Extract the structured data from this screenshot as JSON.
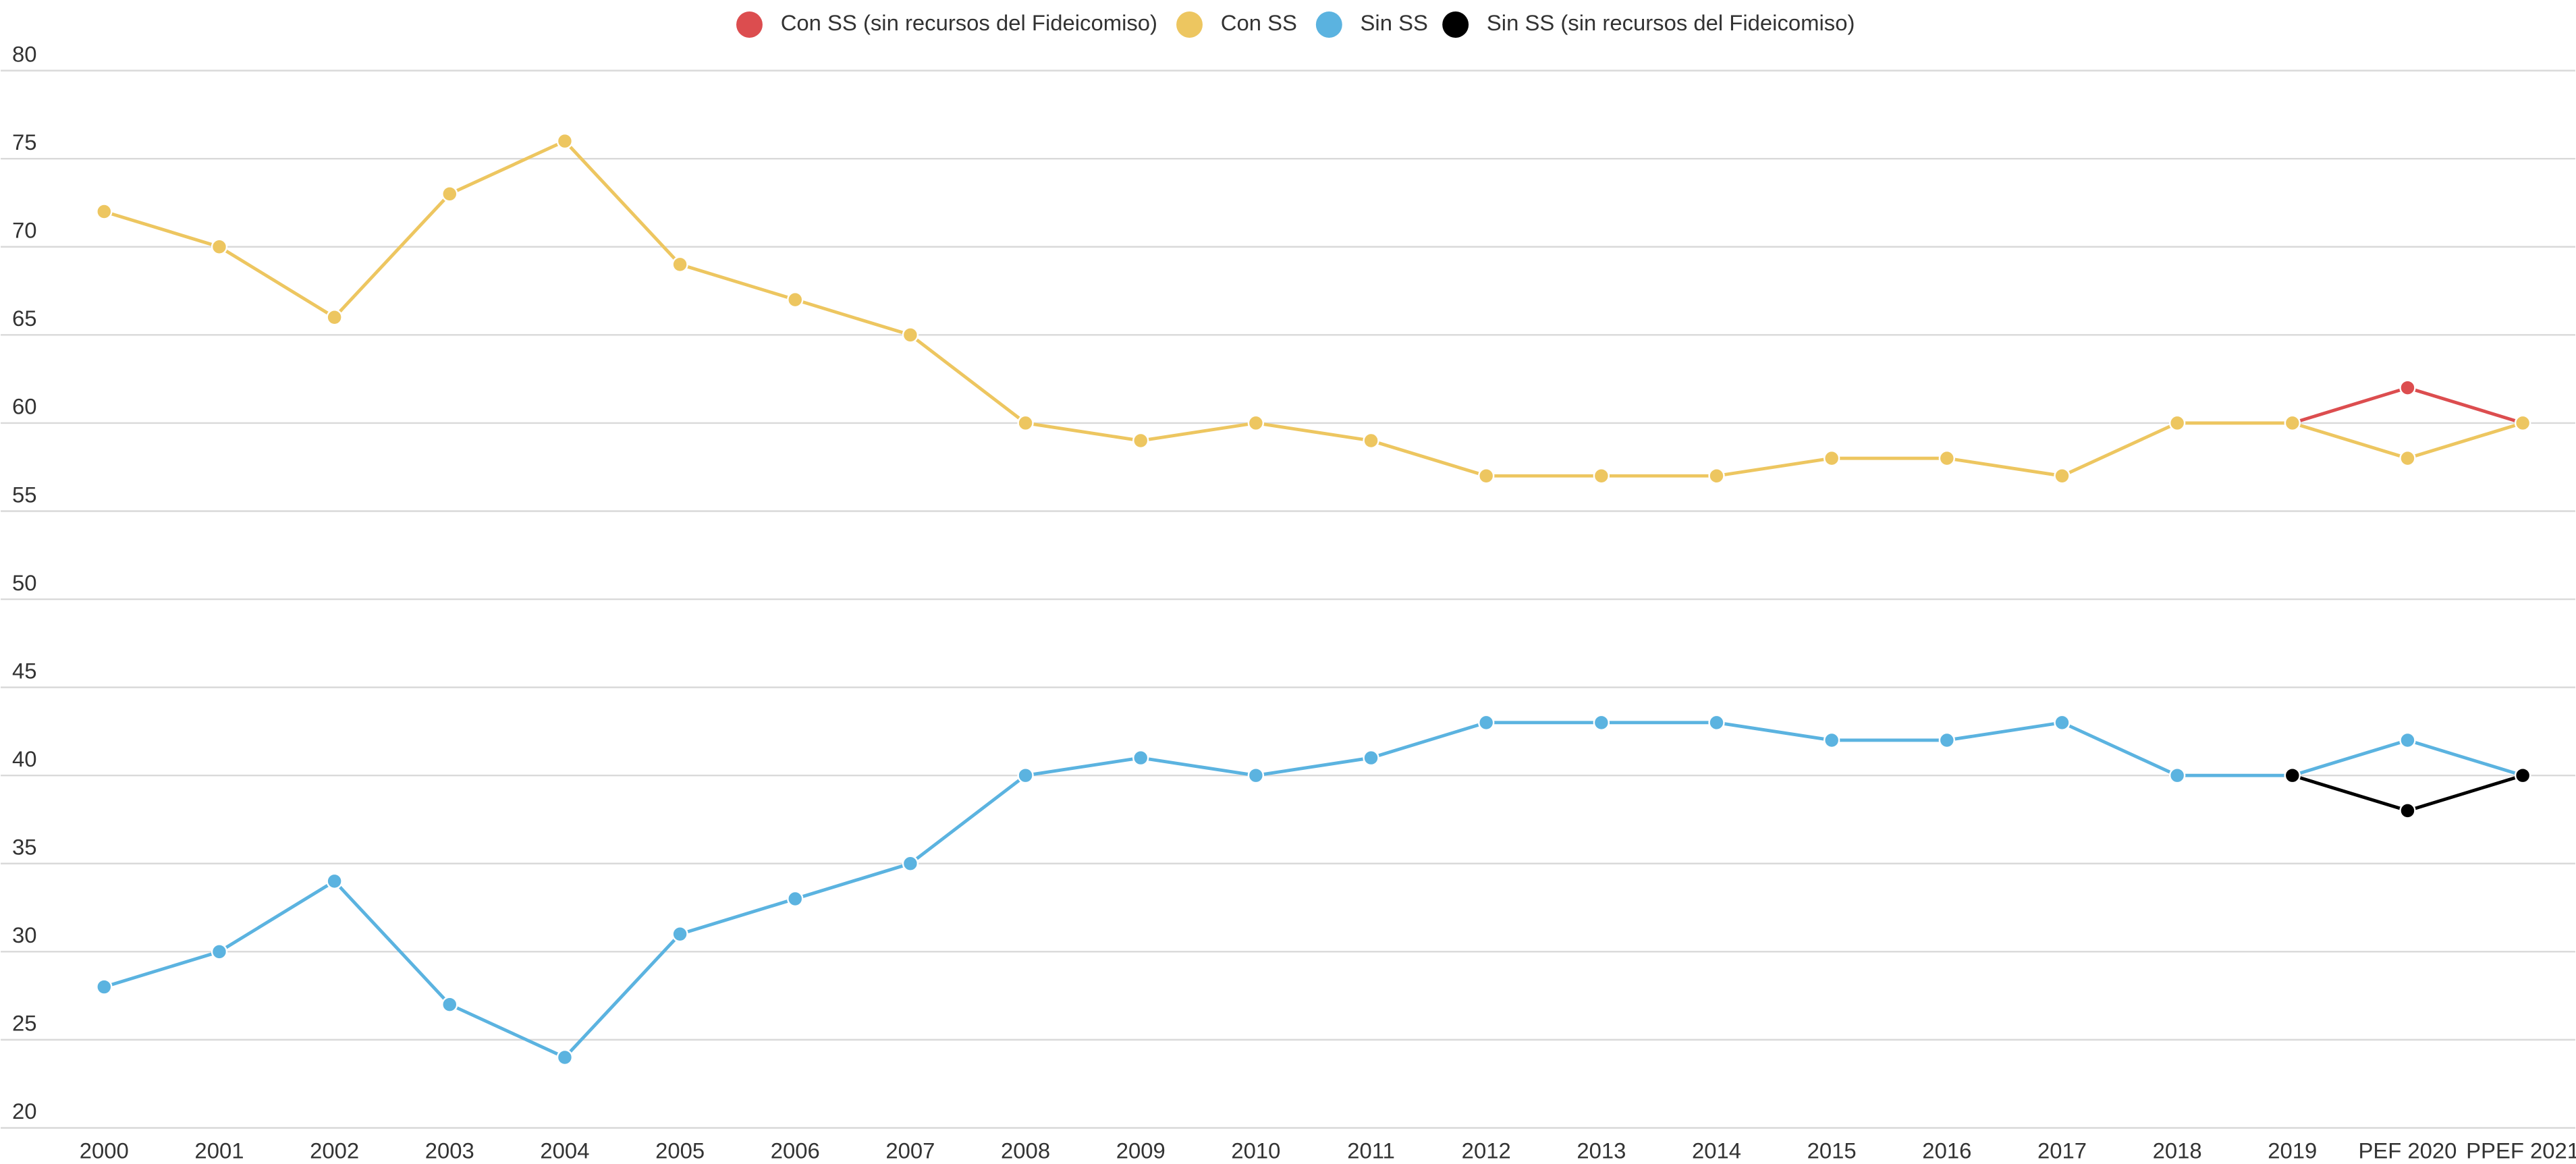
{
  "chart_data": {
    "type": "line",
    "categories": [
      "2000",
      "2001",
      "2002",
      "2003",
      "2004",
      "2005",
      "2006",
      "2007",
      "2008",
      "2009",
      "2010",
      "2011",
      "2012",
      "2013",
      "2014",
      "2015",
      "2016",
      "2017",
      "2018",
      "2019",
      "PEF 2020",
      "PPEF 2021"
    ],
    "series": [
      {
        "name": "Con SS (sin recursos del Fideicomiso)",
        "color": "#dc4d4f",
        "values": [
          null,
          null,
          null,
          null,
          null,
          null,
          null,
          null,
          null,
          null,
          null,
          null,
          null,
          null,
          null,
          null,
          null,
          null,
          null,
          60,
          62,
          60
        ]
      },
      {
        "name": "Con SS",
        "color": "#edc660",
        "values": [
          72,
          70,
          66,
          73,
          76,
          69,
          67,
          65,
          60,
          59,
          60,
          59,
          57,
          57,
          57,
          58,
          58,
          57,
          60,
          60,
          58,
          60
        ]
      },
      {
        "name": "Sin SS",
        "color": "#5bb3e0",
        "values": [
          28,
          30,
          34,
          27,
          24,
          31,
          33,
          35,
          40,
          41,
          40,
          41,
          43,
          43,
          43,
          42,
          42,
          43,
          40,
          40,
          42,
          40
        ]
      },
      {
        "name": "Sin SS (sin recursos del Fideicomiso)",
        "color": "#000000",
        "values": [
          null,
          null,
          null,
          null,
          null,
          null,
          null,
          null,
          null,
          null,
          null,
          null,
          null,
          null,
          null,
          null,
          null,
          null,
          null,
          40,
          38,
          40
        ]
      }
    ],
    "ylim": [
      20,
      80
    ],
    "yticks": [
      20,
      25,
      30,
      35,
      40,
      45,
      50,
      55,
      60,
      65,
      70,
      75,
      80
    ],
    "grid": true,
    "legend": "top"
  }
}
